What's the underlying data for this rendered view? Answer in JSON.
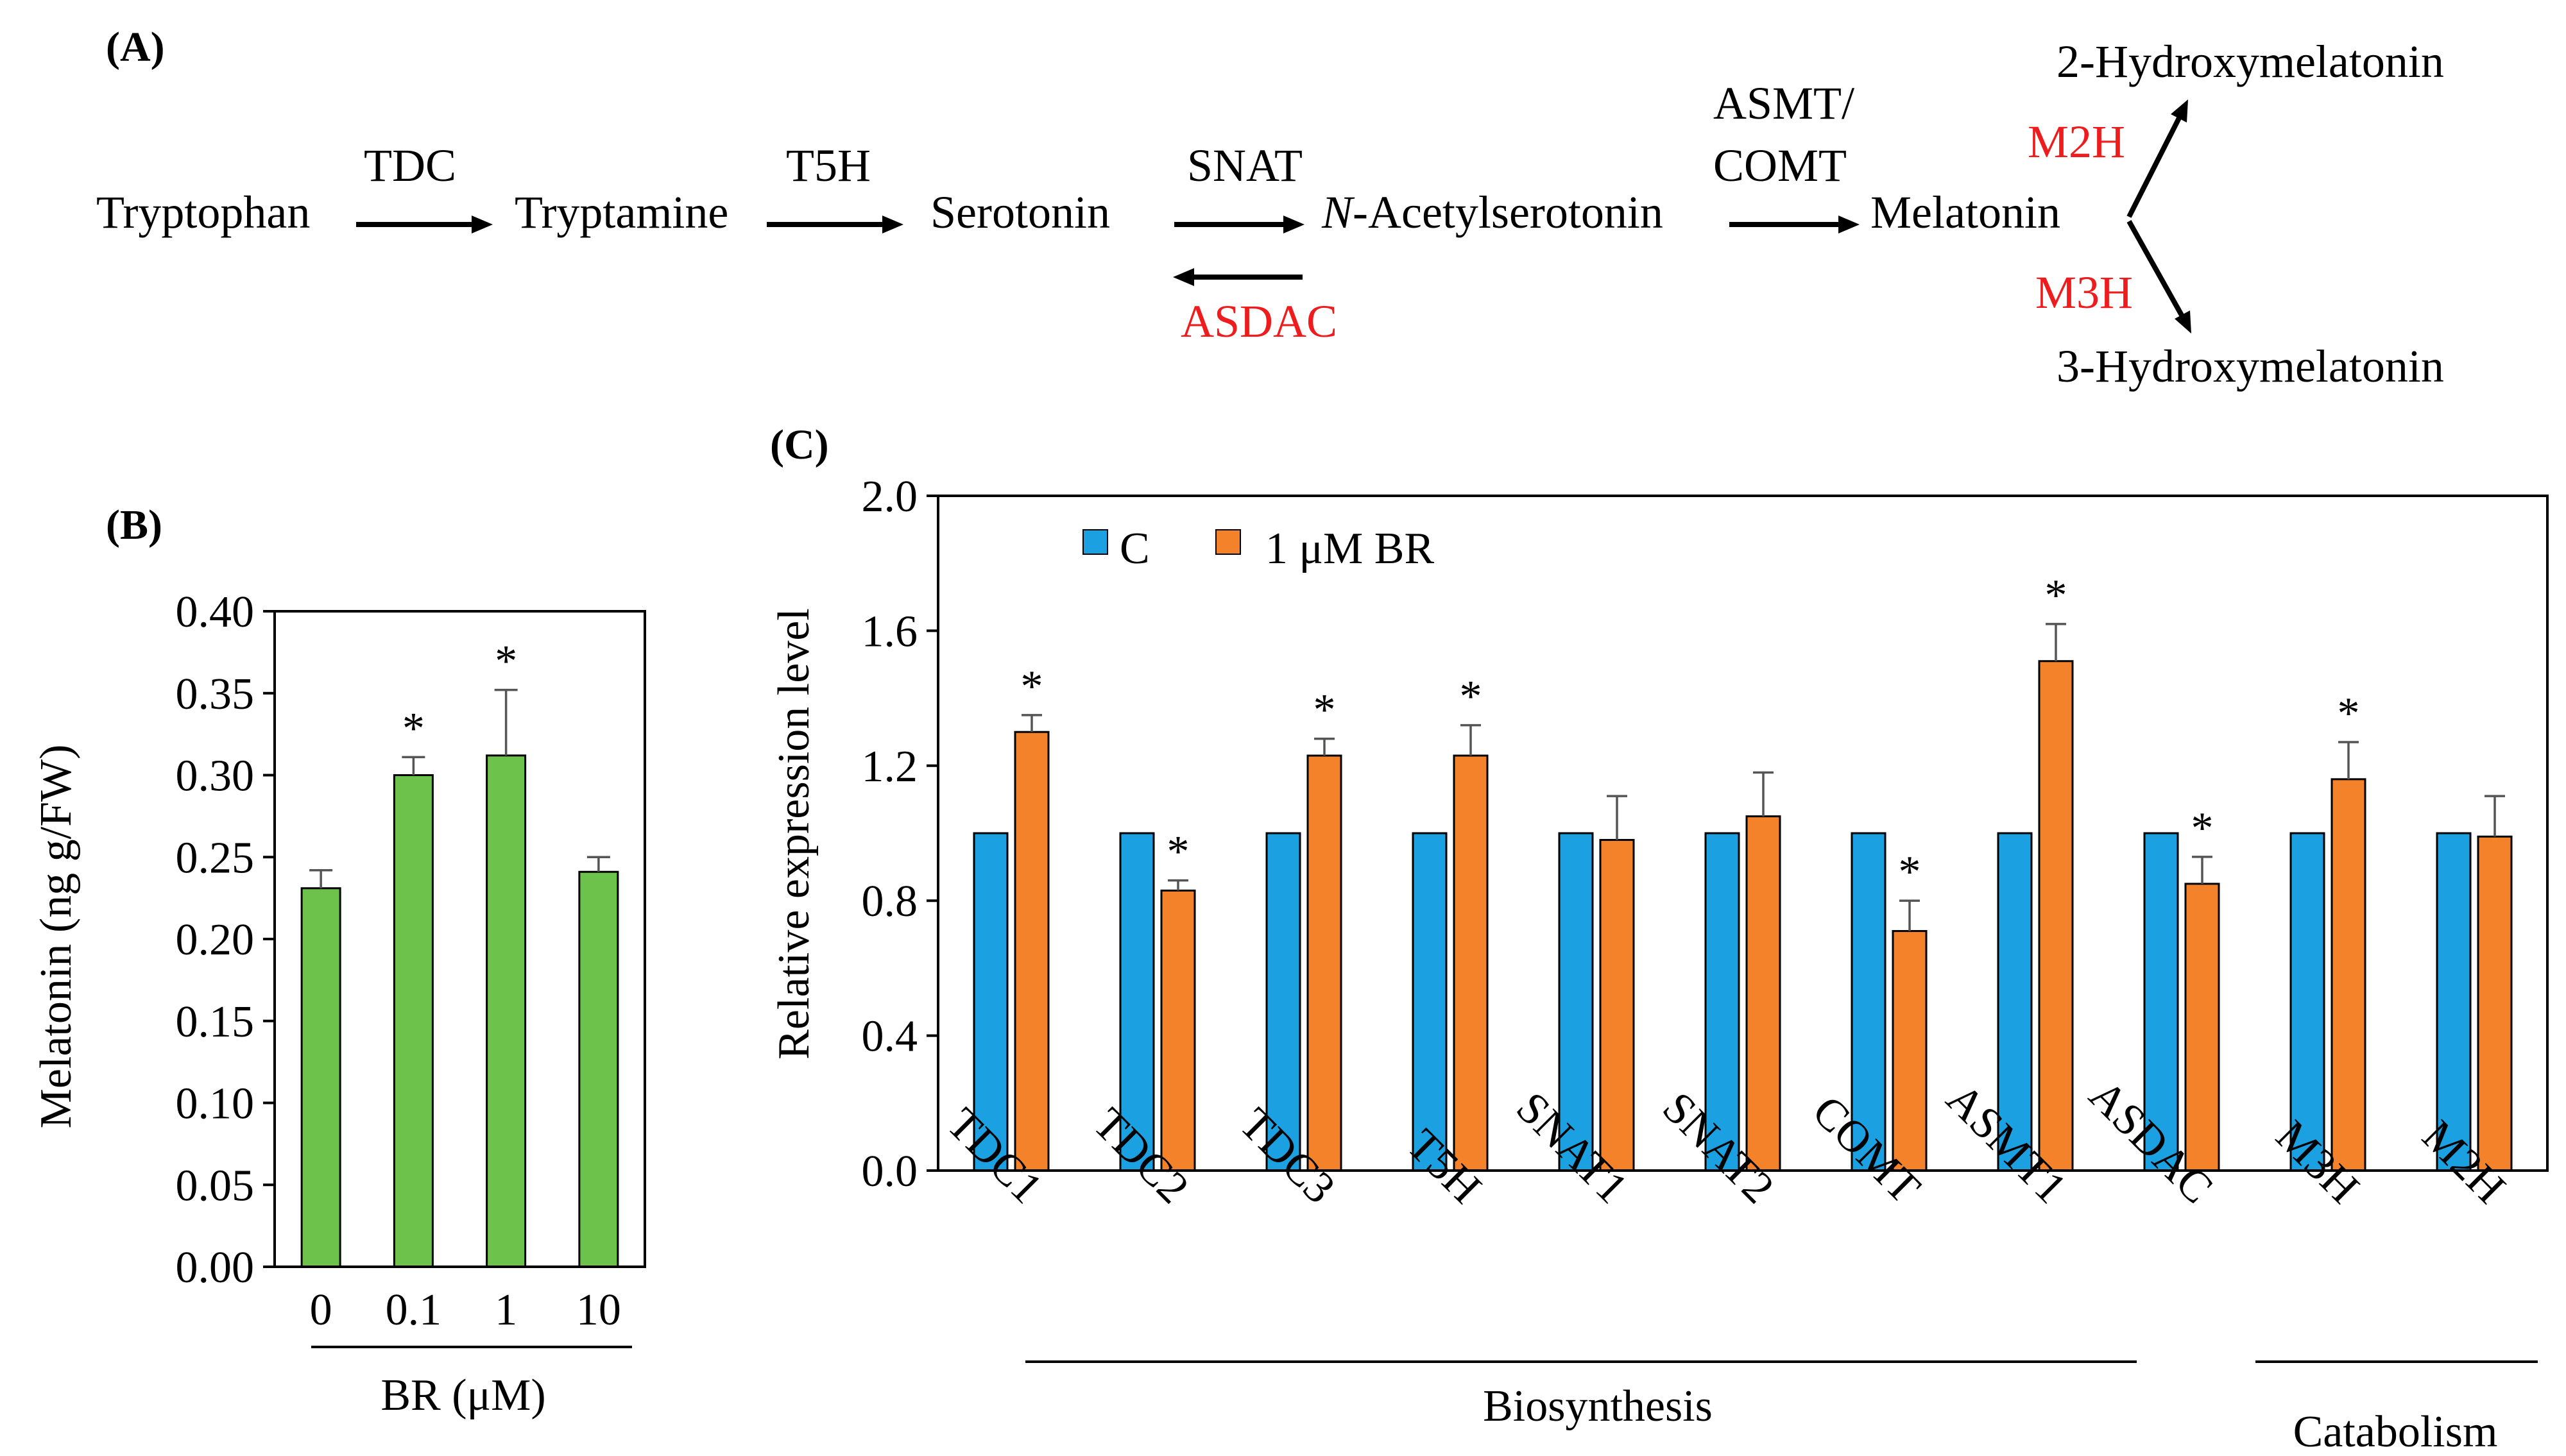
{
  "panel_a": {
    "label": "(A)",
    "compounds": {
      "tryptophan": "Tryptophan",
      "tryptamine": "Tryptamine",
      "serotonin": "Serotonin",
      "n_italic": "N",
      "n_rest": "-Acetylserotonin",
      "melatonin": "Melatonin",
      "hydroxy2": "2-Hydroxymelatonin",
      "hydroxy3": "3-Hydroxymelatonin"
    },
    "enzymes": {
      "tdc": "TDC",
      "t5h": "T5H",
      "snat": "SNAT",
      "asdac": "ASDAC",
      "asmt": "ASMT/",
      "comt": "COMT",
      "m2h": "M2H",
      "m3h": "M3H"
    },
    "colors": {
      "catabolic_enzyme": "#ee1c1c",
      "arrow": "#000000"
    }
  },
  "chart_data": [
    {
      "panel": "(B)",
      "type": "bar",
      "categories": [
        "0",
        "0.1",
        "1",
        "10"
      ],
      "series": [
        {
          "name": "Melatonin",
          "values": [
            0.231,
            0.3,
            0.312,
            0.241
          ],
          "errors": [
            0.011,
            0.011,
            0.04,
            0.009
          ],
          "significant": [
            false,
            true,
            true,
            false
          ],
          "color": "#6cc24a"
        }
      ],
      "significance_marker": "*",
      "xlabel": "BR (μM)",
      "ylabel": "Melatonin (ng g/FW)",
      "ylim": [
        0,
        0.4
      ],
      "yticks": [
        "0.00",
        "0.05",
        "0.10",
        "0.15",
        "0.20",
        "0.25",
        "0.30",
        "0.35",
        "0.40"
      ],
      "grid": false
    },
    {
      "panel": "(C)",
      "type": "bar",
      "categories": [
        "TDC1",
        "TDC2",
        "TDC3",
        "T5H",
        "SNAT1",
        "SNAT2",
        "COMT",
        "ASMT1",
        "ASDAC",
        "M3H",
        "M2H"
      ],
      "series": [
        {
          "name": "C",
          "color": "#1ba1e2",
          "values": [
            1,
            1,
            1,
            1,
            1,
            1,
            1,
            1,
            1,
            1,
            1
          ]
        },
        {
          "name": "1 μM BR",
          "color": "#f4822a",
          "values": [
            1.3,
            0.83,
            1.23,
            1.23,
            0.98,
            1.05,
            0.71,
            1.51,
            0.85,
            1.16,
            0.99
          ],
          "errors": [
            0.05,
            0.03,
            0.05,
            0.09,
            0.13,
            0.13,
            0.09,
            0.11,
            0.08,
            0.11,
            0.12
          ],
          "significant": [
            true,
            true,
            true,
            true,
            false,
            false,
            true,
            true,
            true,
            true,
            false
          ]
        }
      ],
      "significance_marker": "*",
      "ylabel": "Relative expression level",
      "ylim": [
        0,
        2.0
      ],
      "yticks": [
        "0.0",
        "0.4",
        "0.8",
        "1.2",
        "1.6",
        "2.0"
      ],
      "legend": "top-left",
      "groups": [
        {
          "label": "Biosynthesis",
          "from": 0,
          "to": 7
        },
        {
          "label": "Catabolism",
          "from": 8,
          "to": 10
        }
      ],
      "grid": false
    }
  ]
}
